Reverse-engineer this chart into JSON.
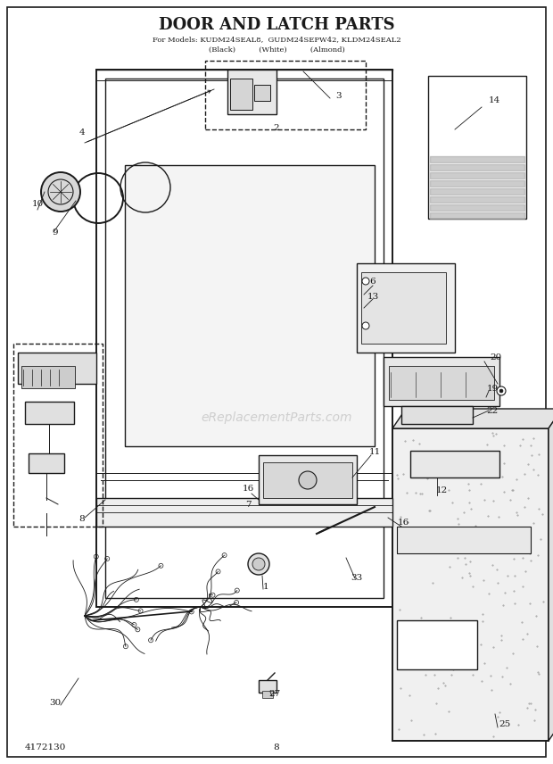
{
  "title": "DOOR AND LATCH PARTS",
  "subtitle_line1": "For Models: KUDM24SEAL8,  GUDM24SEPW42, KLDM24SEAL2",
  "subtitle_line2": "(Black)          (White)          (Almond)",
  "part_number": "4172130",
  "page_number": "8",
  "bg": "#ffffff",
  "fg": "#1a1a1a",
  "watermark": "eReplacementParts.com",
  "wm_color": "#bbbbbb",
  "fig_width": 6.2,
  "fig_height": 8.56,
  "dpi": 100
}
